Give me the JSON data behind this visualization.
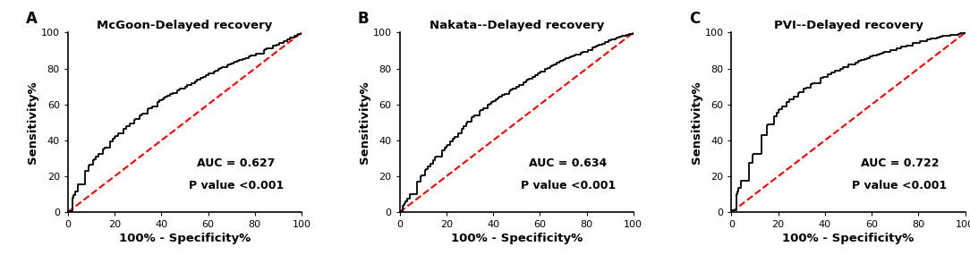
{
  "panels": [
    {
      "label": "A",
      "title": "McGoon-Delayed recovery",
      "auc": "AUC = 0.627",
      "pval": "P value <0.001",
      "auc_x": 72,
      "auc_y": 20,
      "roc_shape": "mcgoon"
    },
    {
      "label": "B",
      "title": "Nakata--Delayed recovery",
      "auc": "AUC = 0.634",
      "pval": "P value <0.001",
      "auc_x": 72,
      "auc_y": 20,
      "roc_shape": "nakata"
    },
    {
      "label": "C",
      "title": "PVI--Delayed recovery",
      "auc": "AUC = 0.722",
      "pval": "P value <0.001",
      "auc_x": 72,
      "auc_y": 20,
      "roc_shape": "pvi"
    }
  ],
  "roc_color": "#000000",
  "diag_color": "#ff0000",
  "diag_linestyle": "--",
  "roc_linewidth": 1.3,
  "diag_linewidth": 1.5,
  "xlabel": "100% - Specificity%",
  "ylabel": "Sensitivity%",
  "xlim": [
    0,
    100
  ],
  "ylim": [
    0,
    100
  ],
  "xticks": [
    0,
    20,
    40,
    60,
    80,
    100
  ],
  "yticks": [
    0,
    20,
    40,
    60,
    80,
    100
  ],
  "tick_fontsize": 8,
  "label_fontsize": 9.5,
  "title_fontsize": 9.5,
  "annot_fontsize": 9,
  "panel_label_fontsize": 12
}
